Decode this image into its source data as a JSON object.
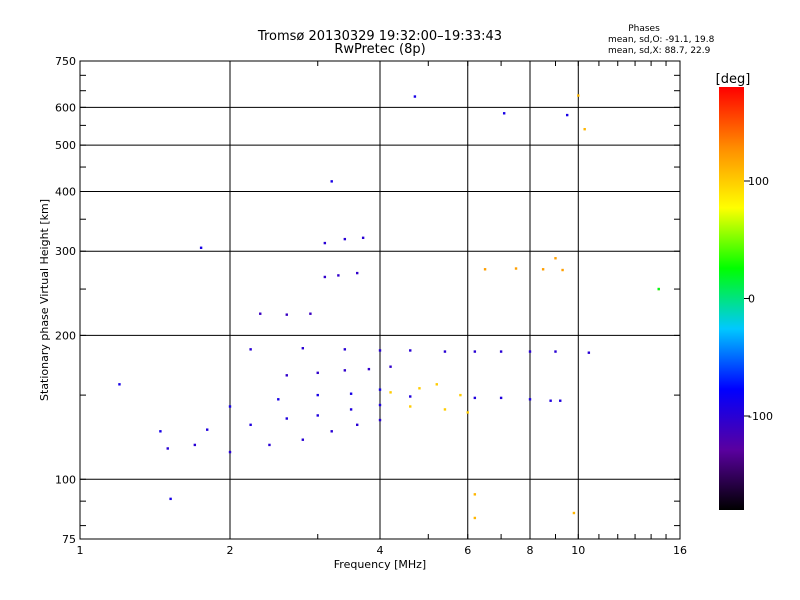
{
  "chart_data": {
    "type": "scatter",
    "title": "Tromsø 20130329 19:32:00–19:33:43",
    "subtitle": "RwPretec (8p)",
    "xlabel": "Frequency [MHz]",
    "ylabel": "Stationary phase Virtual Height [km]",
    "x_scale": "log2",
    "y_scale": "log",
    "xlim": [
      1,
      16
    ],
    "ylim": [
      75,
      750
    ],
    "x_ticks": [
      1,
      2,
      4,
      6,
      8,
      10,
      16
    ],
    "y_ticks": [
      75,
      100,
      200,
      300,
      400,
      500,
      600,
      750
    ],
    "grid_x": [
      2,
      4,
      6,
      8,
      10
    ],
    "grid_y": [
      100,
      200,
      300,
      400,
      500,
      600
    ],
    "stats": {
      "heading": "Phases",
      "line1": "mean, sd,O: -91.1, 19.8",
      "line2": "mean, sd,X: 88.7, 22.9"
    },
    "colorbar": {
      "label": "[deg]",
      "min": -180,
      "max": 180,
      "ticks": [
        100,
        0,
        -100
      ],
      "tick_labels": [
        "100",
        "0",
        "-100"
      ],
      "stops": [
        "#000000",
        "#5a00a0",
        "#0000ff",
        "#00c8ff",
        "#00ff00",
        "#ffff00",
        "#ff8c00",
        "#ff0000"
      ]
    },
    "series": [
      {
        "phase": -100,
        "points": [
          [
            1.5,
            116
          ],
          [
            1.7,
            118
          ],
          [
            2.0,
            114
          ],
          [
            2.4,
            118
          ],
          [
            2.8,
            121
          ],
          [
            3.2,
            126
          ],
          [
            3.6,
            130
          ],
          [
            4.0,
            133
          ]
        ]
      },
      {
        "phase": -95,
        "points": [
          [
            1.8,
            127
          ],
          [
            2.2,
            130
          ],
          [
            2.6,
            134
          ],
          [
            3.0,
            136
          ],
          [
            3.5,
            140
          ],
          [
            4.0,
            143
          ],
          [
            4.6,
            149
          ]
        ]
      },
      {
        "phase": -90,
        "points": [
          [
            2.0,
            142
          ],
          [
            2.5,
            147
          ],
          [
            3.0,
            150
          ],
          [
            3.5,
            151
          ],
          [
            4.0,
            154
          ]
        ]
      },
      {
        "phase": -105,
        "points": [
          [
            2.6,
            165
          ],
          [
            3.0,
            167
          ],
          [
            3.4,
            169
          ],
          [
            3.8,
            170
          ],
          [
            4.2,
            172
          ]
        ]
      },
      {
        "phase": -100,
        "points": [
          [
            2.2,
            187
          ],
          [
            2.8,
            188
          ],
          [
            3.4,
            187
          ],
          [
            4.0,
            186
          ],
          [
            4.6,
            186
          ],
          [
            5.4,
            185
          ],
          [
            6.2,
            185
          ],
          [
            7.0,
            185
          ],
          [
            8.0,
            185
          ],
          [
            9.0,
            185
          ],
          [
            10.5,
            184
          ]
        ]
      },
      {
        "phase": -110,
        "points": [
          [
            2.3,
            222
          ],
          [
            2.6,
            221
          ],
          [
            2.9,
            222
          ]
        ]
      },
      {
        "phase": -105,
        "points": [
          [
            3.1,
            265
          ],
          [
            3.3,
            267
          ],
          [
            3.6,
            270
          ]
        ]
      },
      {
        "phase": -100,
        "points": [
          [
            3.1,
            312
          ],
          [
            3.4,
            318
          ],
          [
            3.7,
            320
          ]
        ]
      },
      {
        "phase": 100,
        "points": [
          [
            4.2,
            152
          ],
          [
            4.8,
            155
          ],
          [
            5.2,
            158
          ],
          [
            5.8,
            150
          ],
          [
            4.6,
            142
          ],
          [
            5.4,
            140
          ],
          [
            6.0,
            138
          ]
        ]
      },
      {
        "phase": -95,
        "points": [
          [
            6.2,
            148
          ],
          [
            7.0,
            148
          ],
          [
            8.0,
            147
          ],
          [
            8.8,
            146
          ],
          [
            9.2,
            146
          ]
        ]
      },
      {
        "phase": 120,
        "points": [
          [
            6.5,
            275
          ],
          [
            7.5,
            276
          ],
          [
            8.5,
            275
          ],
          [
            9.3,
            274
          ],
          [
            9.0,
            290
          ]
        ]
      },
      {
        "phase": -90,
        "points": [
          [
            1.2,
            158
          ],
          [
            1.45,
            126
          ],
          [
            1.52,
            91
          ],
          [
            1.75,
            305
          ],
          [
            3.2,
            420
          ],
          [
            4.7,
            632
          ],
          [
            7.1,
            583
          ],
          [
            9.5,
            578
          ]
        ]
      },
      {
        "phase": 110,
        "points": [
          [
            10.0,
            635
          ],
          [
            10.3,
            540
          ],
          [
            14.5,
            250
          ],
          [
            9.8,
            85
          ],
          [
            6.2,
            93
          ],
          [
            6.2,
            83
          ]
        ]
      },
      {
        "phase": 20,
        "points": [
          [
            14.5,
            250
          ]
        ]
      }
    ]
  }
}
